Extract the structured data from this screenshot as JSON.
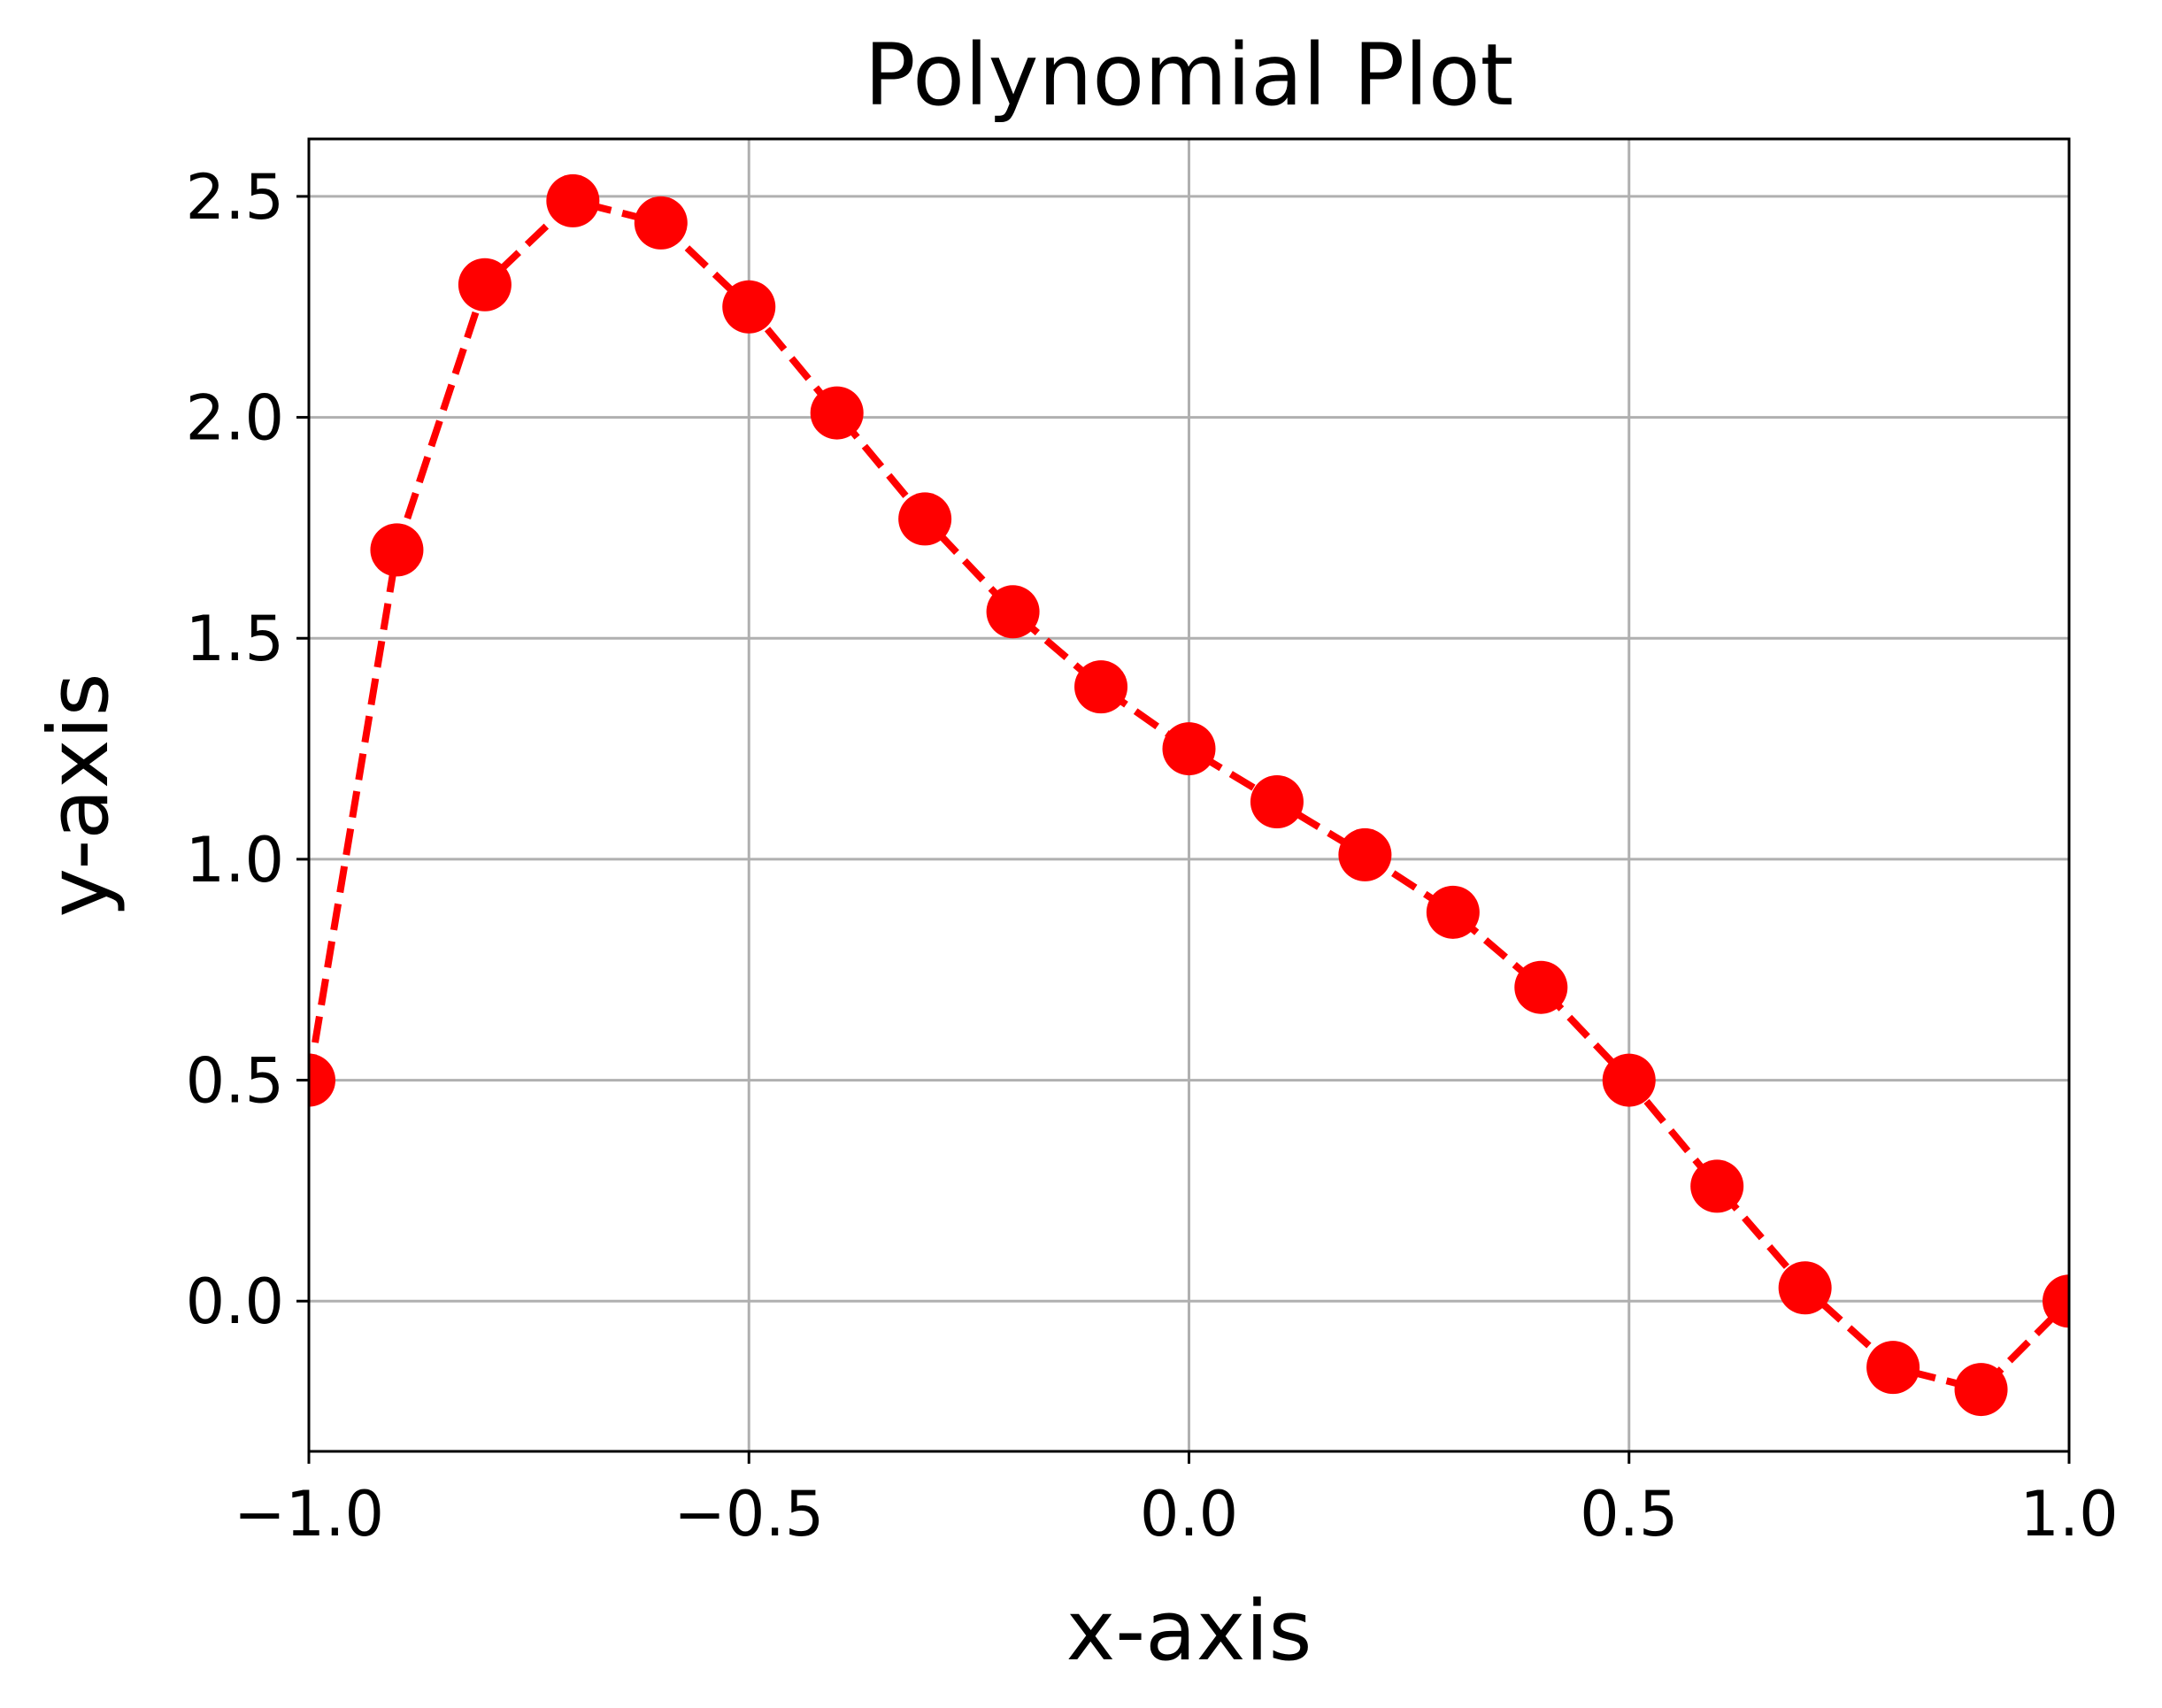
{
  "chart_data": {
    "type": "line",
    "title": "Polynomial Plot",
    "xlabel": "x-axis",
    "ylabel": "y-axis",
    "xlim": [
      -1.0,
      1.0
    ],
    "ylim": [
      -0.34,
      2.63
    ],
    "xticks": [
      -1.0,
      -0.5,
      0.0,
      0.5,
      1.0
    ],
    "xtick_labels": [
      "−1.0",
      "−0.5",
      "0.0",
      "0.5",
      "1.0"
    ],
    "yticks": [
      0.0,
      0.5,
      1.0,
      1.5,
      2.0,
      2.5
    ],
    "ytick_labels": [
      "0.0",
      "0.5",
      "1.0",
      "1.5",
      "2.0",
      "2.5"
    ],
    "grid": true,
    "legend": "none",
    "series": [
      {
        "color": "#ff0000",
        "line_style": "dashed",
        "marker": "circle",
        "x": [
          -1.0,
          -0.9,
          -0.8,
          -0.7,
          -0.6,
          -0.5,
          -0.4,
          -0.3,
          -0.2,
          -0.1,
          0.0,
          0.1,
          0.2,
          0.3,
          0.4,
          0.5,
          0.6,
          0.7,
          0.8,
          0.9,
          1.0
        ],
        "y": [
          0.5,
          1.7,
          2.3,
          2.49,
          2.44,
          2.25,
          2.01,
          1.77,
          1.56,
          1.39,
          1.25,
          1.13,
          1.01,
          0.88,
          0.71,
          0.5,
          0.26,
          0.03,
          -0.15,
          -0.2,
          0.0
        ]
      }
    ]
  }
}
